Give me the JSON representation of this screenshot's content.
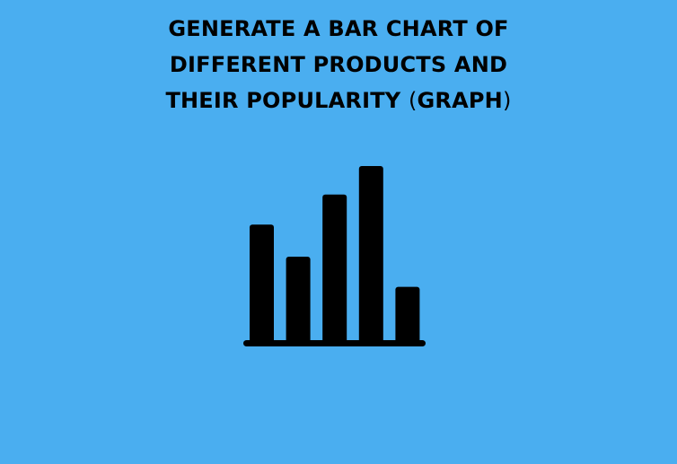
{
  "title": {
    "line1": "GENERATE A BAR CHART OF",
    "line2": "DIFFERENT PRODUCTS AND",
    "line3_text": "THEIR POPULARITY ",
    "line3_paren_open": "(",
    "line3_paren_word": "GRAPH",
    "line3_paren_close": ")"
  },
  "colors": {
    "background": "#4aaef0",
    "ink": "#000000"
  },
  "icon": {
    "name": "bar-chart-icon",
    "bar_levels": [
      0.67,
      0.49,
      0.84,
      1.0,
      0.32
    ]
  }
}
